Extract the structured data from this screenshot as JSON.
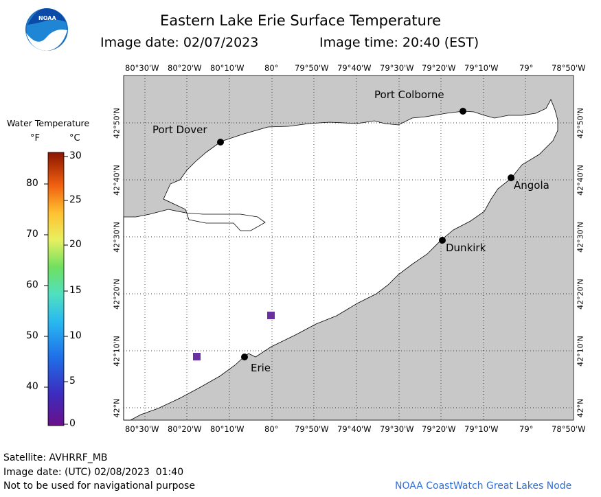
{
  "header": {
    "title": "Eastern Lake Erie Surface Temperature",
    "image_date_label": "Image date: 02/07/2023",
    "image_time_label": "Image time: 20:40 (EST)"
  },
  "logo": {
    "text": "NOAA"
  },
  "map": {
    "lon_labels": [
      "80°30'W",
      "80°20'W",
      "80°10'W",
      "80°",
      "79°50'W",
      "79°40'W",
      "79°30'W",
      "79°20'W",
      "79°10'W",
      "79°",
      "78°50'W"
    ],
    "lat_labels": [
      "42°N",
      "42°10'N",
      "42°20'N",
      "42°30'N",
      "42°40'N",
      "42°50'N"
    ],
    "cities": {
      "port_colborne": "Port Colborne",
      "port_dover": "Port Dover",
      "angola": "Angola",
      "dunkirk": "Dunkirk",
      "erie": "Erie"
    },
    "colors": {
      "land": "#c8c8c8",
      "water": "#ffffff",
      "marker": "#6a2fa0"
    }
  },
  "legend": {
    "title": "Water Temperature",
    "unit_f": "°F",
    "unit_c": "°C",
    "f_ticks": [
      "80",
      "70",
      "60",
      "50",
      "40"
    ],
    "c_ticks": [
      "30",
      "25",
      "20",
      "15",
      "10",
      "5",
      "0"
    ]
  },
  "footer": {
    "satellite": "Satellite: AVHRRF_MB",
    "utc_date": "Image date: (UTC) 02/08/2023  01:40",
    "disclaimer": "Not to be used for navigational purpose",
    "credit": "NOAA CoastWatch Great Lakes Node"
  }
}
